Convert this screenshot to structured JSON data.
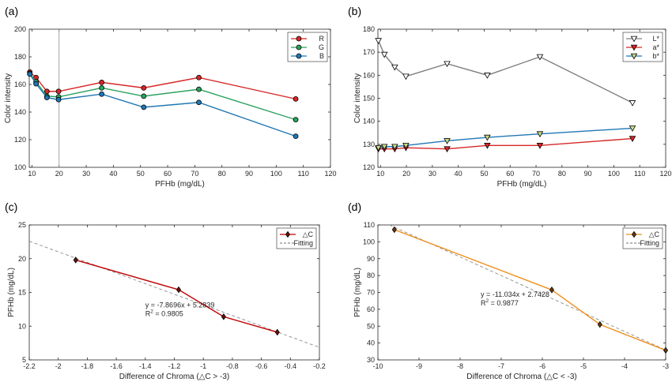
{
  "chart_data": [
    {
      "panel_label": "(a)",
      "type": "line",
      "xlabel": "PFHb (mg/dL)",
      "ylabel": "Color intensity",
      "xlim": [
        9,
        120
      ],
      "ylim": [
        100,
        200
      ],
      "xticks": [
        10,
        20,
        30,
        40,
        50,
        60,
        70,
        80,
        90,
        100,
        110,
        120
      ],
      "yticks": [
        100,
        120,
        140,
        160,
        180,
        200
      ],
      "vline_x": 20,
      "legend": "top-right",
      "x": [
        9.2,
        11.5,
        15.5,
        19.8,
        35.7,
        51.2,
        71.5,
        107.2
      ],
      "series": [
        {
          "name": "R",
          "color": "#d62728",
          "marker": "circle",
          "values": [
            169,
            165,
            155,
            155,
            161.5,
            157.5,
            165,
            149.5
          ]
        },
        {
          "name": "G",
          "color": "#2ca25f",
          "marker": "circle",
          "values": [
            168,
            162,
            151.5,
            151,
            157.5,
            151.5,
            156.5,
            134.5
          ]
        },
        {
          "name": "B",
          "color": "#1f77b4",
          "marker": "circle",
          "values": [
            167.5,
            160.5,
            150.5,
            149,
            153,
            143.5,
            147,
            122.5
          ]
        }
      ]
    },
    {
      "panel_label": "(b)",
      "type": "line",
      "xlabel": "PFHb (mg/dL)",
      "ylabel": "Color intensity",
      "xlim": [
        9,
        120
      ],
      "ylim": [
        120,
        180
      ],
      "xticks": [
        10,
        20,
        30,
        40,
        50,
        60,
        70,
        80,
        90,
        100,
        110,
        120
      ],
      "yticks": [
        120,
        130,
        140,
        150,
        160,
        170,
        180
      ],
      "legend": "top-right",
      "x": [
        9.2,
        11.5,
        15.5,
        19.8,
        35.7,
        51.2,
        71.5,
        107.2
      ],
      "series": [
        {
          "name": "L*",
          "color": "#7f7f7f",
          "marker": "triangle-down",
          "values": [
            175,
            169,
            163.5,
            159.5,
            165,
            160,
            168,
            148
          ]
        },
        {
          "name": "a*",
          "color": "#d62728",
          "marker": "triangle-down",
          "values": [
            128,
            128,
            128,
            128.5,
            128,
            129.5,
            129.5,
            132.5
          ]
        },
        {
          "name": "b*",
          "color": "#1f77b4",
          "marker": "triangle-down",
          "values": [
            128.5,
            129,
            129,
            129.5,
            131.5,
            133,
            134.5,
            137
          ]
        }
      ]
    },
    {
      "panel_label": "(c)",
      "type": "scatter",
      "xlabel": "Difference of Chroma (△C > -3)",
      "ylabel": "PFHb (mg/dL)",
      "xlim": [
        -2.2,
        -0.2
      ],
      "ylim": [
        5,
        25
      ],
      "xticks": [
        -2.2,
        -2,
        -1.8,
        -1.6,
        -1.4,
        -1.2,
        -1,
        -0.8,
        -0.6,
        -0.4,
        -0.2
      ],
      "xtick_labels": [
        "-2.2",
        "-2",
        "-1.8",
        "-1.6",
        "-1.4",
        "-1.2",
        "-1",
        "-0.8",
        "-0.6",
        "-0.4",
        "-0.2"
      ],
      "yticks": [
        5,
        10,
        15,
        20,
        25
      ],
      "legend": "top-right",
      "series": [
        {
          "name": "△C",
          "color": "#c00000",
          "marker": "diamond",
          "x": [
            -1.88,
            -1.17,
            -0.86,
            -0.49
          ],
          "y": [
            19.8,
            15.4,
            11.4,
            9.1
          ]
        }
      ],
      "fit": {
        "name": "Fitting",
        "slope": -7.8696,
        "intercept": 5.2839,
        "color": "#8c8c8c"
      },
      "equation": "y = -7.8696x + 5.2839",
      "r2_label": "R",
      "r2_sup": "2",
      "r2_value": " = 0.9805"
    },
    {
      "panel_label": "(d)",
      "type": "scatter",
      "xlabel": "Difference of Chroma (△C < -3)",
      "ylabel": "PFHb (mg/dL)",
      "xlim": [
        -10,
        -3
      ],
      "ylim": [
        30,
        110
      ],
      "xticks": [
        -10,
        -9,
        -8,
        -7,
        -6,
        -5,
        -4,
        -3
      ],
      "xtick_labels": [
        "-10",
        "-9",
        "-8",
        "-7",
        "-6",
        "-5",
        "-4",
        "-3"
      ],
      "yticks": [
        30,
        40,
        50,
        60,
        70,
        80,
        90,
        100,
        110
      ],
      "legend": "top-right",
      "series": [
        {
          "name": "△C",
          "color": "#f0901e",
          "marker": "diamond",
          "x": [
            -9.6,
            -5.77,
            -4.6,
            -3.0
          ],
          "y": [
            107.2,
            71.5,
            51.0,
            35.7
          ]
        }
      ],
      "fit": {
        "name": "Fitting",
        "slope": -11.034,
        "intercept": 2.7428,
        "color": "#8c8c8c"
      },
      "equation": "y = -11.034x + 2.7428",
      "r2_label": "R",
      "r2_sup": "2",
      "r2_value": " = 0.9877"
    }
  ]
}
